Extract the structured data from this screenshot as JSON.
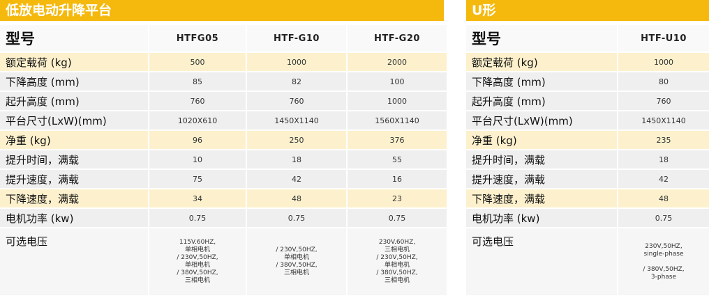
{
  "tables": [
    {
      "title": "低放电动升降平台",
      "header": {
        "label": "型号",
        "models": [
          "HTFG05",
          "HTF-G10",
          "HTF-G20"
        ]
      },
      "rows": [
        [
          "额定载荷 (kg)",
          "500",
          "1000",
          "2000"
        ],
        [
          "下降高度 (mm)",
          "85",
          "82",
          "100"
        ],
        [
          "起升高度 (mm)",
          "760",
          "760",
          "1000"
        ],
        [
          "平台尺寸(LxW)(mm)",
          "1020X610",
          "1450X1140",
          "1560X1140"
        ],
        [
          "净重 (kg)",
          "96",
          "250",
          "376"
        ],
        [
          "提升时间，满载",
          "10",
          "18",
          "55"
        ],
        [
          "提升速度，满载",
          "75",
          "42",
          "16"
        ],
        [
          "下降速度，满载",
          "34",
          "48",
          "23"
        ],
        [
          "电机功率 (kw)",
          "0.75",
          "0.75",
          "0.75"
        ],
        [
          "可选电压",
          [
            "115V.60HZ,",
            "单相电机",
            "/ 230V,50HZ,",
            "单相电机",
            "/ 380V,50HZ,",
            "三相电机"
          ],
          [
            "/ 230V,50HZ,",
            "单相电机",
            "/ 380V,50HZ,",
            "三相电机"
          ],
          [
            "230V.60HZ,",
            "三相电机",
            "/ 230V,50HZ,",
            "单相电机",
            "/ 380V,50HZ,",
            "三相电机"
          ]
        ]
      ]
    },
    {
      "title": "U形",
      "header": {
        "label": "型号",
        "models": [
          "HTF-U10"
        ]
      },
      "rows": [
        [
          "额定载荷 (kg)",
          "1000"
        ],
        [
          "下降高度 (mm)",
          "80"
        ],
        [
          "起升高度 (mm)",
          "760"
        ],
        [
          "平台尺寸(LxW)(mm)",
          "1450X1140"
        ],
        [
          "净重 (kg)",
          "235"
        ],
        [
          "提升时间，满载",
          "18"
        ],
        [
          "提升速度，满载",
          "42"
        ],
        [
          "下降速度，满载",
          "48"
        ],
        [
          "电机功率 (kw)",
          "0.75"
        ],
        [
          "可选电压",
          [
            "230V,50HZ,",
            "single-phase",
            "",
            "/ 380V,50HZ,",
            "3-phase"
          ]
        ]
      ]
    }
  ]
}
